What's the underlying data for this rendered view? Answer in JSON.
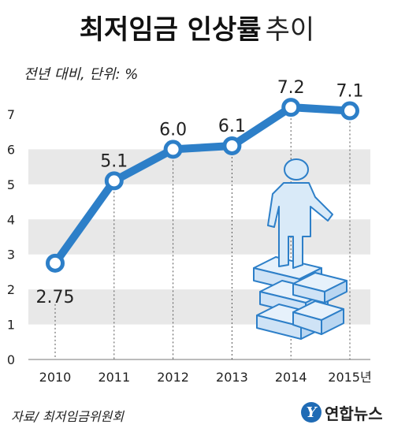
{
  "title": {
    "bold": "최저임금 인상률",
    "light": "추이"
  },
  "subtitle": "전년 대비, 단위: %",
  "source": "자료/ 최저임금위원회",
  "logo": {
    "mark": "Y",
    "text": "연합뉴스"
  },
  "colors": {
    "line": "#2d7fc8",
    "band": "#e8e8e8",
    "marker_fill": "#ffffff"
  },
  "chart_data": {
    "type": "line",
    "x": [
      "2010",
      "2011",
      "2012",
      "2013",
      "2014",
      "2015"
    ],
    "x_tick_labels": [
      "2010",
      "2011",
      "2012",
      "2013",
      "2014",
      "2015년"
    ],
    "y": [
      2.75,
      5.1,
      6.0,
      6.1,
      7.2,
      7.1
    ],
    "data_labels": [
      "2.75",
      "5.1",
      "6.0",
      "6.1",
      "7.2",
      "7.1"
    ],
    "yticks": [
      "0",
      "1",
      "2",
      "3",
      "4",
      "5",
      "6",
      "7"
    ],
    "ylim": [
      0,
      7
    ],
    "grid": "alternating horizontal bands with dotted vertical drop lines",
    "legend": "none"
  }
}
